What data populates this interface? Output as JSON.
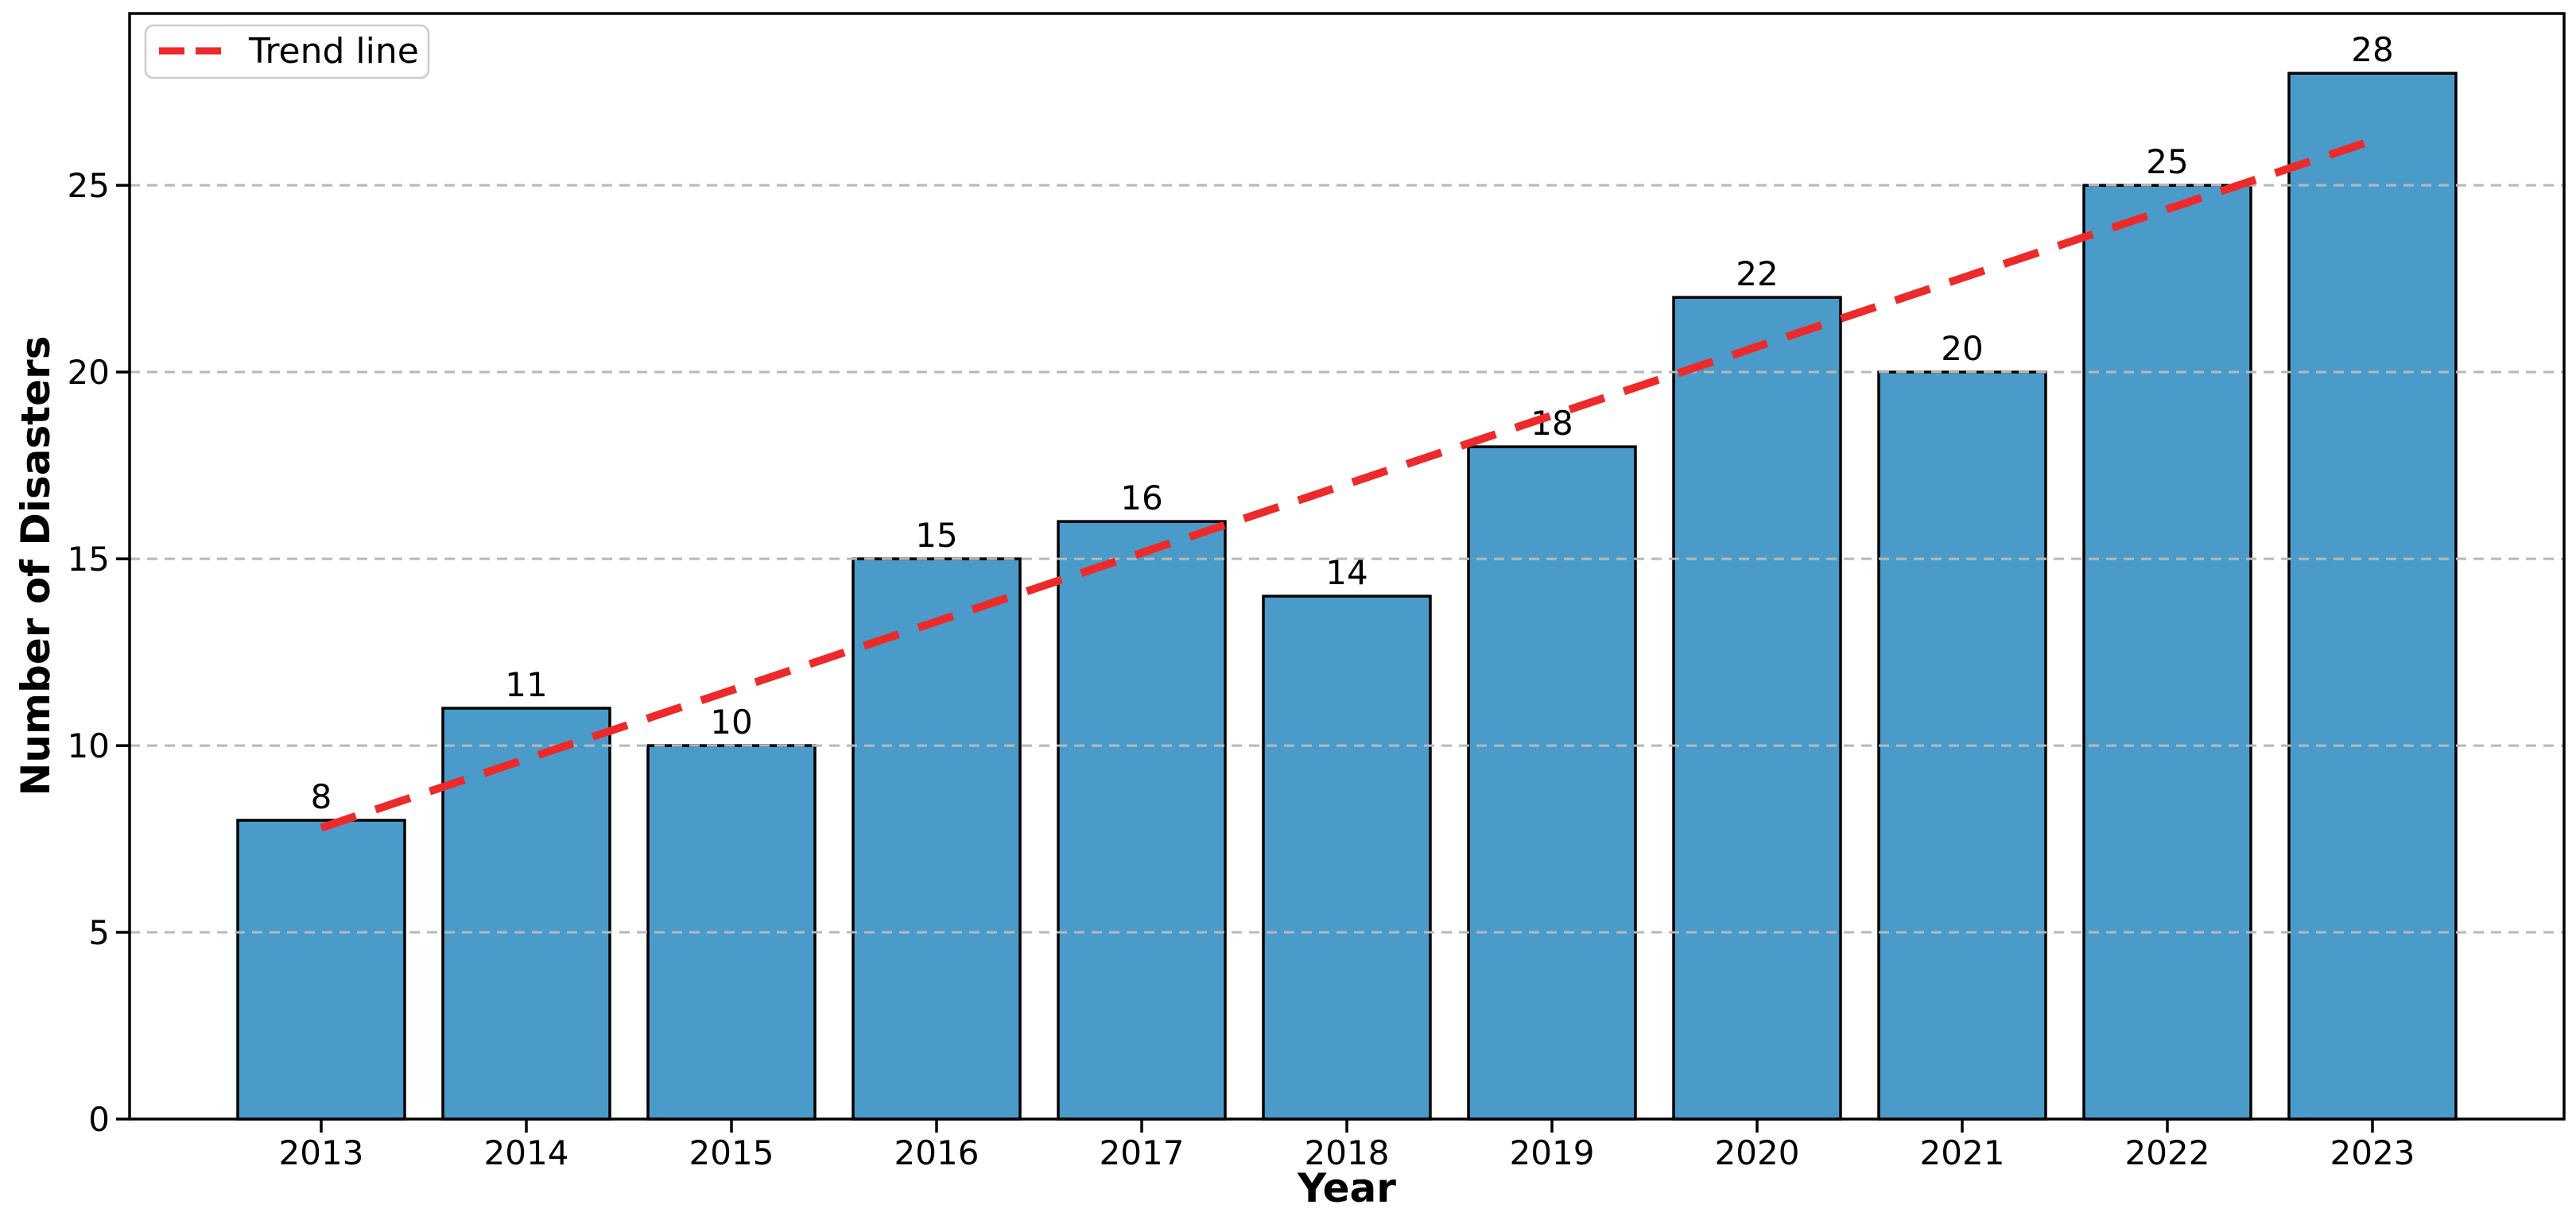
{
  "figure": {
    "background_color": "#ffffff"
  },
  "chart_data": {
    "type": "bar",
    "title": "",
    "xlabel": "Year",
    "ylabel": "Number of Disasters",
    "categories": [
      "2013",
      "2014",
      "2015",
      "2016",
      "2017",
      "2018",
      "2019",
      "2020",
      "2021",
      "2022",
      "2023"
    ],
    "values": [
      8,
      11,
      10,
      15,
      16,
      14,
      18,
      22,
      20,
      25,
      28
    ],
    "value_labels": [
      "8",
      "11",
      "10",
      "15",
      "16",
      "14",
      "18",
      "22",
      "20",
      "25",
      "28"
    ],
    "yticks": [
      0,
      5,
      10,
      15,
      20,
      25
    ],
    "ylim": [
      0,
      29.6
    ],
    "grid": {
      "horizontal": true,
      "style": "dashed",
      "color": "#b8b8b8"
    },
    "bar_style": {
      "fill_color": "#4A9BC9",
      "edge_color": "#000000"
    },
    "trend_line": {
      "label": "Trend line",
      "color": "#ED2A2A",
      "style": "dashed",
      "start_value": 7.8,
      "end_value": 26.2
    },
    "legend": {
      "position": "upper left",
      "entries": [
        "Trend line"
      ]
    }
  }
}
